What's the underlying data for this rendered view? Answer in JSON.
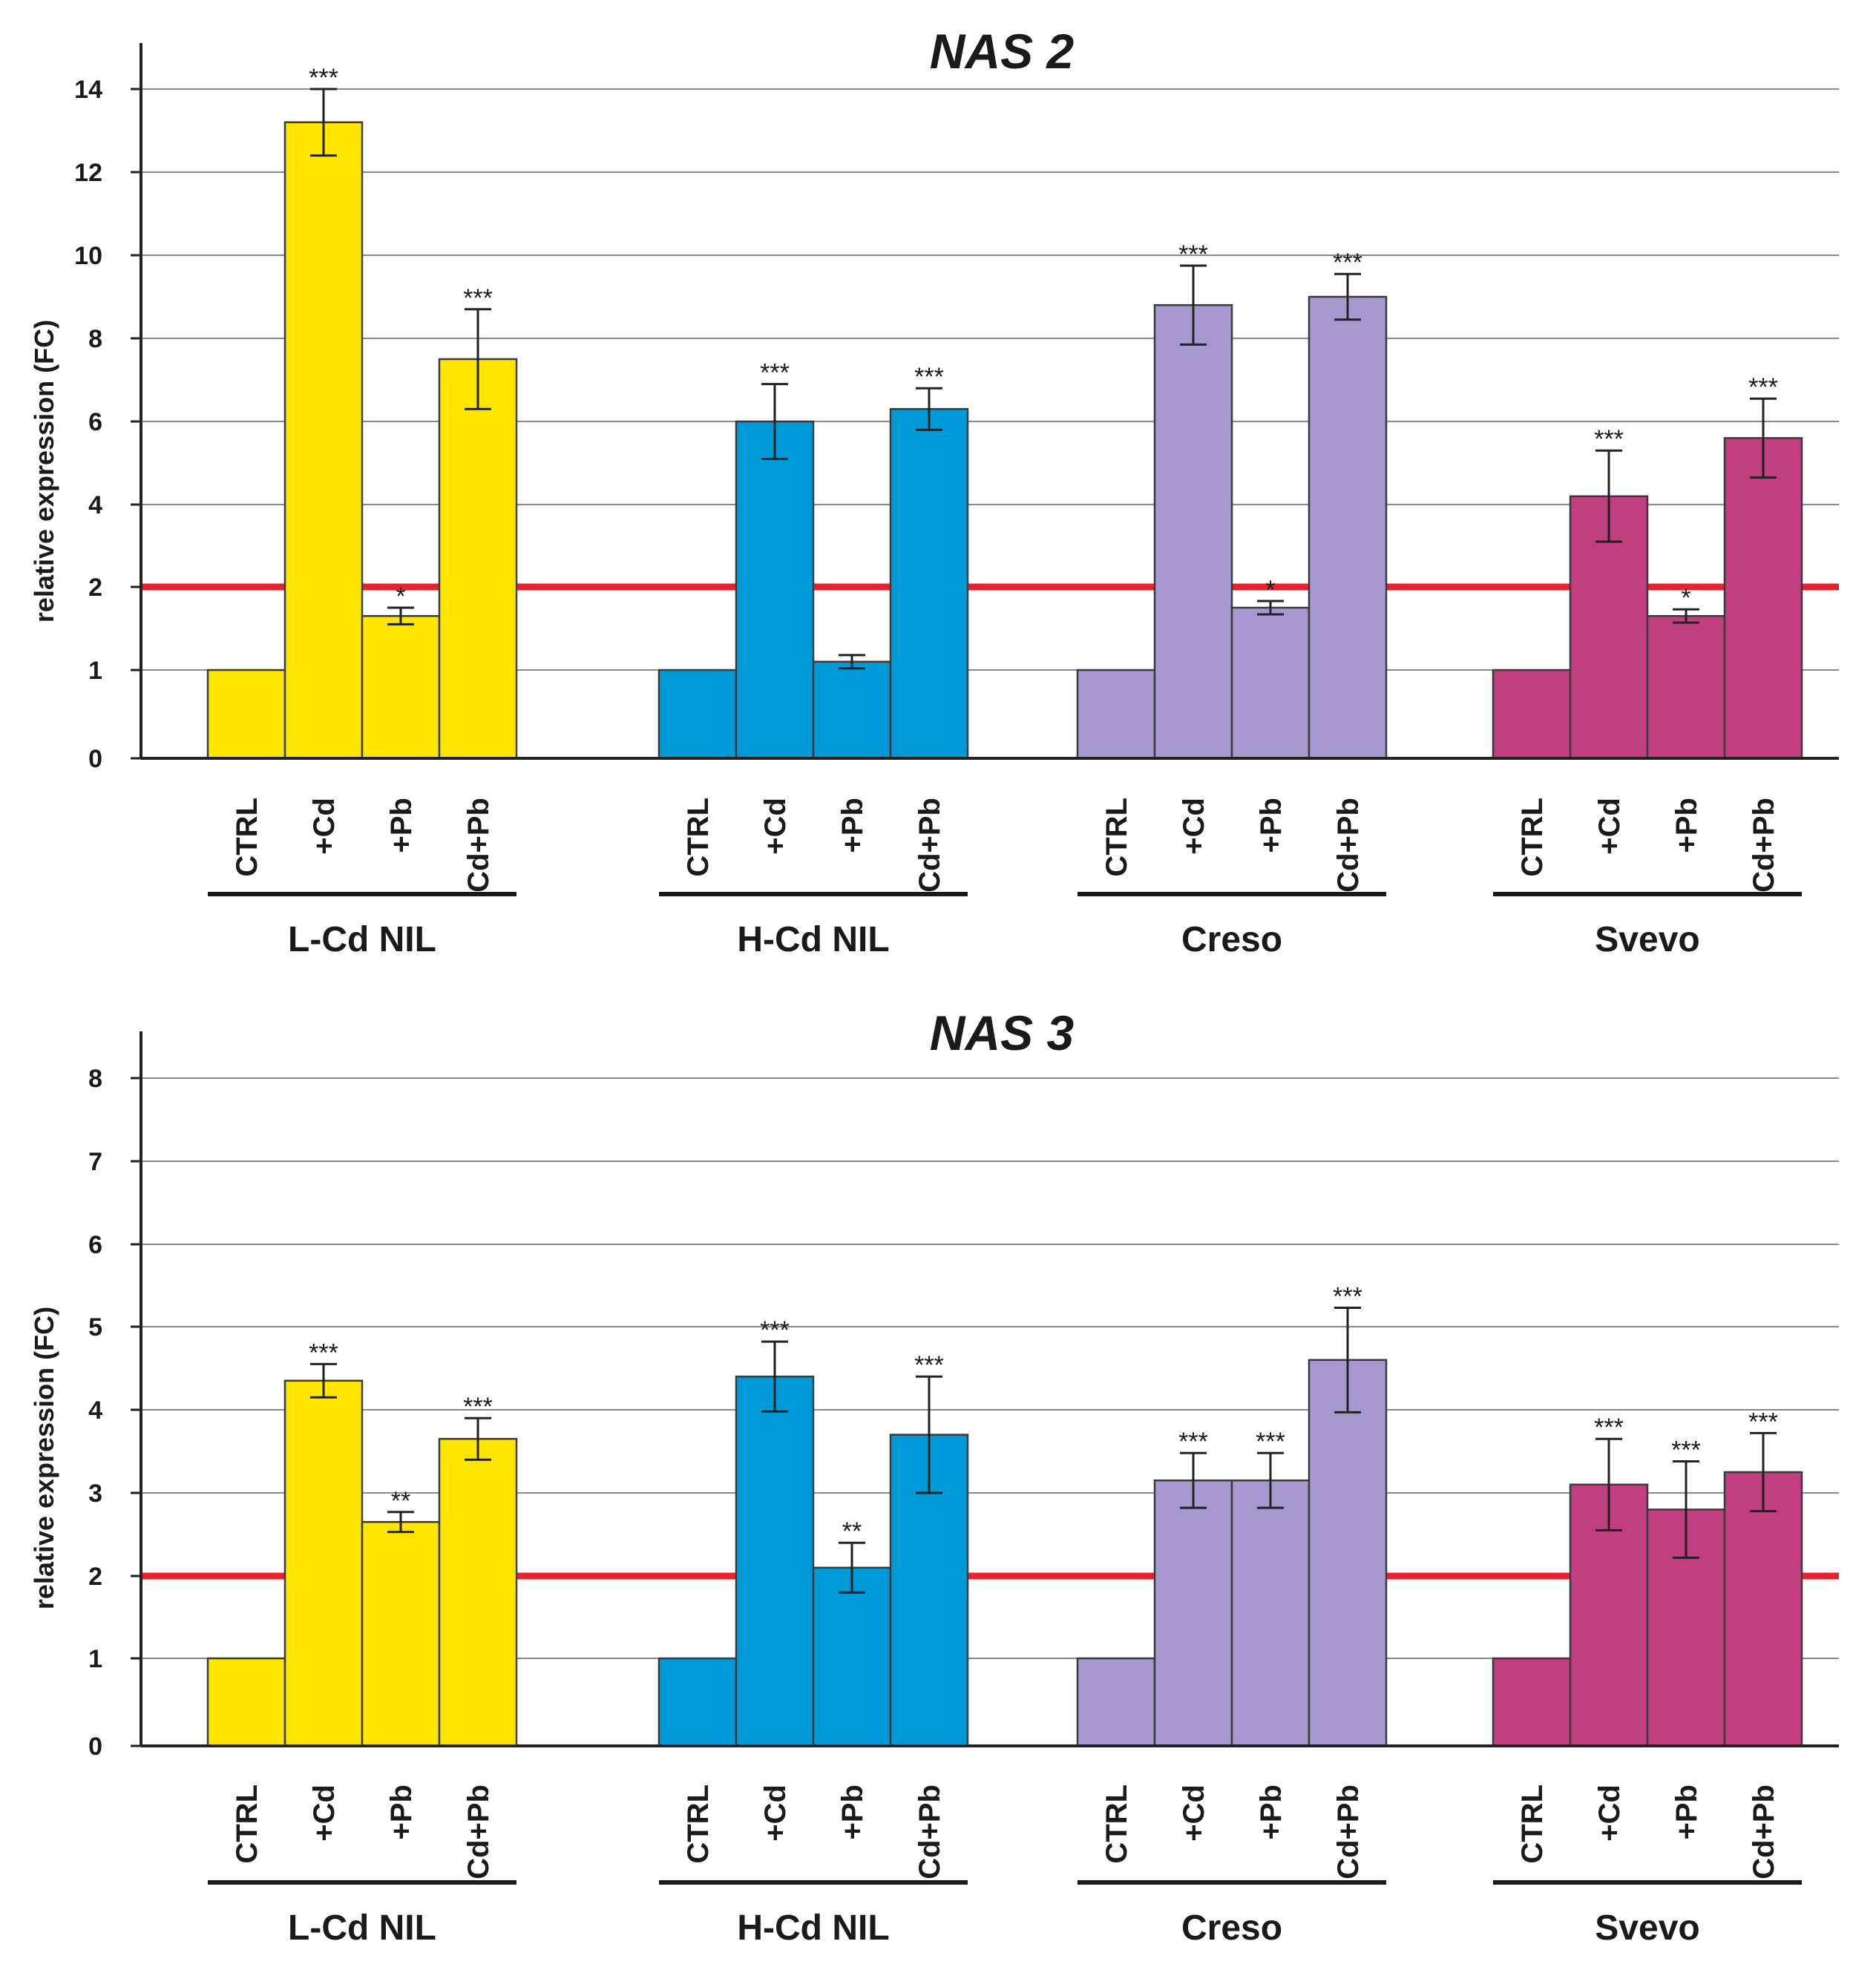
{
  "chart_data": [
    {
      "type": "bar",
      "title": "NAS 2",
      "ylabel": "relative expression (FC)",
      "yticks": [
        "0",
        "1",
        "2",
        "4",
        "6",
        "8",
        "10",
        "12",
        "14"
      ],
      "categories": [
        "CTRL",
        "+Cd",
        "+Pb",
        "Cd+Pb"
      ],
      "threshold": 2,
      "grid": true,
      "groups": [
        {
          "name": "L-Cd NIL",
          "color": "#ffe600",
          "values": [
            1,
            13.2,
            1.65,
            7.5
          ],
          "errors": [
            0,
            0.8,
            0.1,
            1.2
          ],
          "sig": [
            "",
            "***",
            "*",
            "***"
          ]
        },
        {
          "name": "H-Cd NIL",
          "color": "#0099d8",
          "values": [
            1,
            6.0,
            1.1,
            6.3
          ],
          "errors": [
            0,
            0.9,
            0.08,
            0.5
          ],
          "sig": [
            "",
            "***",
            "",
            "***"
          ]
        },
        {
          "name": "Creso",
          "color": "#a799cf",
          "values": [
            1,
            8.8,
            1.75,
            9.0
          ],
          "errors": [
            0,
            0.95,
            0.08,
            0.55
          ],
          "sig": [
            "",
            "***",
            "*",
            "***"
          ]
        },
        {
          "name": "Svevo",
          "color": "#c13f7f",
          "values": [
            1,
            4.2,
            1.65,
            5.6
          ],
          "errors": [
            0,
            1.1,
            0.08,
            0.95
          ],
          "sig": [
            "",
            "***",
            "*",
            "***"
          ]
        }
      ]
    },
    {
      "type": "bar",
      "title": "NAS 3",
      "ylabel": "relative expression (FC)",
      "yticks": [
        "0",
        "1",
        "2",
        "3",
        "4",
        "5",
        "6",
        "7",
        "8"
      ],
      "categories": [
        "CTRL",
        "+Cd",
        "+Pb",
        "Cd+Pb"
      ],
      "threshold": 2,
      "grid": true,
      "groups": [
        {
          "name": "L-Cd NIL",
          "color": "#ffe600",
          "values": [
            1,
            4.35,
            2.65,
            3.65
          ],
          "errors": [
            0,
            0.2,
            0.12,
            0.25
          ],
          "sig": [
            "",
            "***",
            "**",
            "***"
          ]
        },
        {
          "name": "H-Cd NIL",
          "color": "#0099d8",
          "values": [
            1,
            4.4,
            2.1,
            3.7
          ],
          "errors": [
            0,
            0.42,
            0.3,
            0.7
          ],
          "sig": [
            "",
            "***",
            "**",
            "***"
          ]
        },
        {
          "name": "Creso",
          "color": "#a799cf",
          "values": [
            1,
            3.15,
            3.15,
            4.6
          ],
          "errors": [
            0,
            0.33,
            0.33,
            0.63
          ],
          "sig": [
            "",
            "***",
            "***",
            "***"
          ]
        },
        {
          "name": "Svevo",
          "color": "#c13f7f",
          "values": [
            1,
            3.1,
            2.8,
            3.25
          ],
          "errors": [
            0,
            0.55,
            0.58,
            0.47
          ],
          "sig": [
            "",
            "***",
            "***",
            "***"
          ]
        }
      ]
    }
  ]
}
